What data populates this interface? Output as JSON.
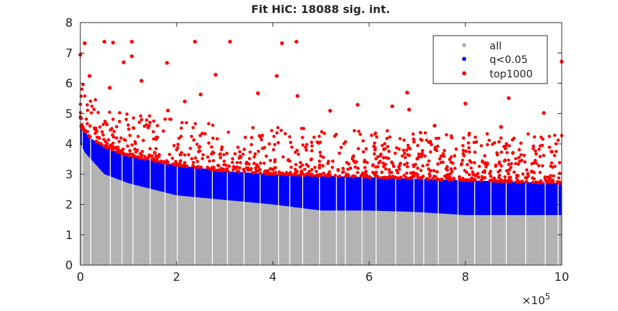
{
  "chart_data": {
    "type": "scatter",
    "title": "Fit HiC: 18088 sig. int.",
    "xlabel": "",
    "ylabel": "",
    "x_multiplier_label": "×10",
    "x_multiplier_exponent": "5",
    "xlim": [
      0,
      10
    ],
    "ylim": [
      0,
      8
    ],
    "xticks": [
      "0",
      "2",
      "4",
      "6",
      "8",
      "10"
    ],
    "xtick_values": [
      0,
      2,
      4,
      6,
      8,
      10
    ],
    "yticks": [
      "0",
      "1",
      "2",
      "3",
      "4",
      "5",
      "6",
      "7",
      "8"
    ],
    "ytick_values": [
      0,
      1,
      2,
      3,
      4,
      5,
      6,
      7,
      8
    ],
    "grid": false,
    "legend": {
      "placement": "top-right",
      "entries": [
        {
          "label": "all",
          "color": "#b3b3b3"
        },
        {
          "label": "q<0.05",
          "color": "#0000ff"
        },
        {
          "label": "top1000",
          "color": "#ff0000"
        }
      ]
    },
    "series": [
      {
        "name": "all",
        "color": "#b3b3b3",
        "description_type": "envelope",
        "upper_envelope": [
          [
            0,
            4.0
          ],
          [
            0.1,
            3.7
          ],
          [
            0.5,
            3.0
          ],
          [
            1,
            2.7
          ],
          [
            1.5,
            2.5
          ],
          [
            2,
            2.3
          ],
          [
            3,
            2.15
          ],
          [
            4,
            2.0
          ],
          [
            5,
            1.8
          ],
          [
            6,
            1.8
          ],
          [
            7,
            1.75
          ],
          [
            8,
            1.65
          ],
          [
            10,
            1.65
          ]
        ]
      },
      {
        "name": "q<0.05",
        "color": "#0000ff",
        "description_type": "envelope",
        "upper_envelope": [
          [
            0,
            4.6
          ],
          [
            0.2,
            4.2
          ],
          [
            0.5,
            3.9
          ],
          [
            1,
            3.6
          ],
          [
            1.5,
            3.45
          ],
          [
            2,
            3.3
          ],
          [
            3,
            3.1
          ],
          [
            4,
            3.0
          ],
          [
            5,
            2.95
          ],
          [
            6,
            2.9
          ],
          [
            7,
            2.85
          ],
          [
            8,
            2.8
          ],
          [
            10,
            2.7
          ]
        ]
      },
      {
        "name": "top1000",
        "color": "#ff0000",
        "band_count": 1000,
        "band_spread": 1.6,
        "outliers": [
          [
            0.09,
            7.32
          ],
          [
            0.0,
            6.94
          ],
          [
            0.5,
            7.37
          ],
          [
            0.68,
            7.34
          ],
          [
            1.07,
            7.37
          ],
          [
            1.07,
            6.89
          ],
          [
            0.9,
            6.69
          ],
          [
            1.8,
            6.67
          ],
          [
            2.38,
            7.37
          ],
          [
            3.11,
            7.37
          ],
          [
            2.81,
            6.28
          ],
          [
            4.19,
            7.32
          ],
          [
            4.49,
            7.37
          ],
          [
            4.08,
            6.24
          ],
          [
            10.0,
            6.71
          ],
          [
            0.19,
            6.24
          ],
          [
            0.61,
            5.85
          ],
          [
            1.27,
            6.08
          ],
          [
            2.5,
            5.63
          ],
          [
            3.69,
            5.67
          ],
          [
            4.51,
            5.58
          ],
          [
            5.76,
            5.29
          ],
          [
            6.48,
            5.24
          ],
          [
            6.83,
            5.13
          ],
          [
            6.79,
            5.69
          ],
          [
            8.0,
            5.33
          ],
          [
            8.9,
            5.51
          ],
          [
            9.63,
            5.02
          ],
          [
            8.74,
            4.56
          ],
          [
            7.36,
            4.6
          ],
          [
            5.19,
            5.09
          ],
          [
            2.17,
            5.4
          ],
          [
            1.82,
            5.1
          ]
        ]
      }
    ]
  }
}
